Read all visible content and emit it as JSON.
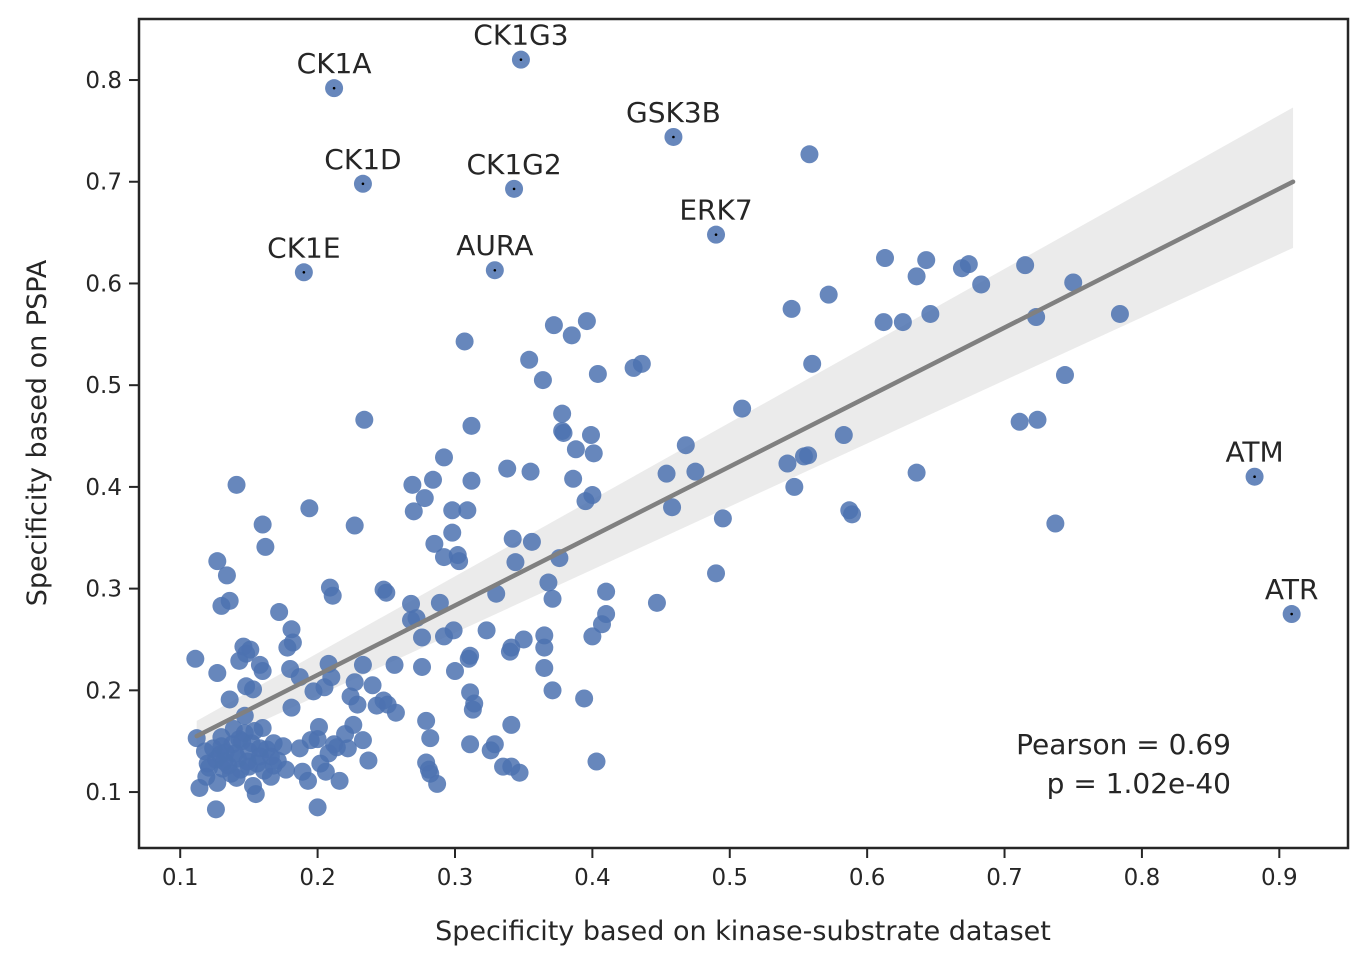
{
  "chart_data": {
    "type": "scatter",
    "xlabel": "Specificity based on kinase-substrate dataset",
    "ylabel": "Specificity based on PSPA",
    "xlim": [
      0.07,
      0.95
    ],
    "ylim": [
      0.045,
      0.86
    ],
    "x_ticks": [
      0.1,
      0.2,
      0.3,
      0.4,
      0.5,
      0.6,
      0.7,
      0.8,
      0.9
    ],
    "y_ticks": [
      0.1,
      0.2,
      0.3,
      0.4,
      0.5,
      0.6,
      0.7,
      0.8
    ],
    "x_tick_labels": [
      "0.1",
      "0.2",
      "0.3",
      "0.4",
      "0.5",
      "0.6",
      "0.7",
      "0.8",
      "0.9"
    ],
    "y_tick_labels": [
      "0.1",
      "0.2",
      "0.3",
      "0.4",
      "0.5",
      "0.6",
      "0.7",
      "0.8"
    ],
    "grid": false,
    "marker_color": "#4c72b0",
    "regression": {
      "color": "#808080",
      "band_color": "#ebebeb",
      "x": [
        0.112,
        0.91
      ],
      "y": [
        0.155,
        0.7
      ],
      "band_lower": [
        0.14,
        0.635
      ],
      "band_upper": [
        0.17,
        0.773
      ]
    },
    "stats_text": [
      "Pearson = 0.69",
      "p = 1.02e-40"
    ],
    "labeled_points": [
      {
        "label": "CK1G3",
        "x": 0.348,
        "y": 0.82
      },
      {
        "label": "CK1A",
        "x": 0.212,
        "y": 0.792
      },
      {
        "label": "GSK3B",
        "x": 0.459,
        "y": 0.744
      },
      {
        "label": "CK1D",
        "x": 0.233,
        "y": 0.698
      },
      {
        "label": "CK1G2",
        "x": 0.343,
        "y": 0.693
      },
      {
        "label": "ERK7",
        "x": 0.49,
        "y": 0.648
      },
      {
        "label": "CK1E",
        "x": 0.19,
        "y": 0.611
      },
      {
        "label": "AURA",
        "x": 0.329,
        "y": 0.613
      },
      {
        "label": "ATM",
        "x": 0.882,
        "y": 0.41
      },
      {
        "label": "ATR",
        "x": 0.909,
        "y": 0.275
      }
    ],
    "points": [
      [
        0.558,
        0.727
      ],
      [
        0.613,
        0.625
      ],
      [
        0.643,
        0.623
      ],
      [
        0.674,
        0.619
      ],
      [
        0.715,
        0.618
      ],
      [
        0.669,
        0.615
      ],
      [
        0.636,
        0.607
      ],
      [
        0.75,
        0.601
      ],
      [
        0.683,
        0.599
      ],
      [
        0.572,
        0.589
      ],
      [
        0.545,
        0.575
      ],
      [
        0.646,
        0.57
      ],
      [
        0.784,
        0.57
      ],
      [
        0.723,
        0.567
      ],
      [
        0.612,
        0.562
      ],
      [
        0.626,
        0.562
      ],
      [
        0.396,
        0.563
      ],
      [
        0.372,
        0.559
      ],
      [
        0.385,
        0.549
      ],
      [
        0.307,
        0.543
      ],
      [
        0.354,
        0.525
      ],
      [
        0.436,
        0.521
      ],
      [
        0.56,
        0.521
      ],
      [
        0.43,
        0.517
      ],
      [
        0.404,
        0.511
      ],
      [
        0.744,
        0.51
      ],
      [
        0.364,
        0.505
      ],
      [
        0.509,
        0.477
      ],
      [
        0.378,
        0.472
      ],
      [
        0.234,
        0.466
      ],
      [
        0.711,
        0.464
      ],
      [
        0.724,
        0.466
      ],
      [
        0.312,
        0.46
      ],
      [
        0.378,
        0.455
      ],
      [
        0.379,
        0.453
      ],
      [
        0.399,
        0.451
      ],
      [
        0.583,
        0.451
      ],
      [
        0.388,
        0.437
      ],
      [
        0.401,
        0.433
      ],
      [
        0.554,
        0.43
      ],
      [
        0.557,
        0.431
      ],
      [
        0.468,
        0.441
      ],
      [
        0.292,
        0.429
      ],
      [
        0.542,
        0.423
      ],
      [
        0.338,
        0.418
      ],
      [
        0.355,
        0.415
      ],
      [
        0.475,
        0.415
      ],
      [
        0.454,
        0.413
      ],
      [
        0.636,
        0.414
      ],
      [
        0.386,
        0.408
      ],
      [
        0.284,
        0.407
      ],
      [
        0.312,
        0.406
      ],
      [
        0.141,
        0.402
      ],
      [
        0.269,
        0.402
      ],
      [
        0.547,
        0.4
      ],
      [
        0.4,
        0.392
      ],
      [
        0.395,
        0.386
      ],
      [
        0.278,
        0.389
      ],
      [
        0.458,
        0.38
      ],
      [
        0.587,
        0.377
      ],
      [
        0.589,
        0.373
      ],
      [
        0.194,
        0.379
      ],
      [
        0.298,
        0.377
      ],
      [
        0.309,
        0.377
      ],
      [
        0.27,
        0.376
      ],
      [
        0.495,
        0.369
      ],
      [
        0.737,
        0.364
      ],
      [
        0.16,
        0.363
      ],
      [
        0.227,
        0.362
      ],
      [
        0.298,
        0.355
      ],
      [
        0.342,
        0.349
      ],
      [
        0.356,
        0.346
      ],
      [
        0.285,
        0.344
      ],
      [
        0.162,
        0.341
      ],
      [
        0.302,
        0.333
      ],
      [
        0.376,
        0.33
      ],
      [
        0.292,
        0.331
      ],
      [
        0.303,
        0.327
      ],
      [
        0.344,
        0.326
      ],
      [
        0.127,
        0.327
      ],
      [
        0.134,
        0.313
      ],
      [
        0.49,
        0.315
      ],
      [
        0.368,
        0.306
      ],
      [
        0.209,
        0.301
      ],
      [
        0.248,
        0.299
      ],
      [
        0.211,
        0.293
      ],
      [
        0.25,
        0.296
      ],
      [
        0.41,
        0.297
      ],
      [
        0.33,
        0.295
      ],
      [
        0.371,
        0.29
      ],
      [
        0.136,
        0.288
      ],
      [
        0.268,
        0.285
      ],
      [
        0.289,
        0.286
      ],
      [
        0.447,
        0.286
      ],
      [
        0.13,
        0.283
      ],
      [
        0.172,
        0.277
      ],
      [
        0.41,
        0.275
      ],
      [
        0.268,
        0.269
      ],
      [
        0.272,
        0.271
      ],
      [
        0.407,
        0.265
      ],
      [
        0.181,
        0.26
      ],
      [
        0.299,
        0.259
      ],
      [
        0.323,
        0.259
      ],
      [
        0.365,
        0.254
      ],
      [
        0.4,
        0.253
      ],
      [
        0.276,
        0.252
      ],
      [
        0.292,
        0.253
      ],
      [
        0.35,
        0.25
      ],
      [
        0.182,
        0.247
      ],
      [
        0.146,
        0.243
      ],
      [
        0.178,
        0.242
      ],
      [
        0.151,
        0.24
      ],
      [
        0.341,
        0.242
      ],
      [
        0.365,
        0.242
      ],
      [
        0.34,
        0.238
      ],
      [
        0.148,
        0.236
      ],
      [
        0.311,
        0.234
      ],
      [
        0.31,
        0.231
      ],
      [
        0.111,
        0.231
      ],
      [
        0.143,
        0.229
      ],
      [
        0.158,
        0.225
      ],
      [
        0.208,
        0.226
      ],
      [
        0.233,
        0.225
      ],
      [
        0.256,
        0.225
      ],
      [
        0.276,
        0.223
      ],
      [
        0.3,
        0.219
      ],
      [
        0.365,
        0.222
      ],
      [
        0.18,
        0.221
      ],
      [
        0.127,
        0.217
      ],
      [
        0.16,
        0.219
      ],
      [
        0.187,
        0.213
      ],
      [
        0.21,
        0.213
      ],
      [
        0.227,
        0.208
      ],
      [
        0.205,
        0.203
      ],
      [
        0.148,
        0.204
      ],
      [
        0.153,
        0.201
      ],
      [
        0.24,
        0.205
      ],
      [
        0.197,
        0.199
      ],
      [
        0.311,
        0.198
      ],
      [
        0.371,
        0.2
      ],
      [
        0.224,
        0.194
      ],
      [
        0.136,
        0.191
      ],
      [
        0.248,
        0.19
      ],
      [
        0.251,
        0.186
      ],
      [
        0.314,
        0.187
      ],
      [
        0.394,
        0.192
      ],
      [
        0.229,
        0.186
      ],
      [
        0.243,
        0.185
      ],
      [
        0.181,
        0.183
      ],
      [
        0.313,
        0.181
      ],
      [
        0.257,
        0.178
      ],
      [
        0.147,
        0.175
      ],
      [
        0.16,
        0.163
      ],
      [
        0.279,
        0.17
      ],
      [
        0.341,
        0.166
      ],
      [
        0.226,
        0.166
      ],
      [
        0.201,
        0.164
      ],
      [
        0.22,
        0.157
      ],
      [
        0.195,
        0.151
      ],
      [
        0.13,
        0.154
      ],
      [
        0.143,
        0.152
      ],
      [
        0.112,
        0.153
      ],
      [
        0.233,
        0.151
      ],
      [
        0.282,
        0.153
      ],
      [
        0.212,
        0.147
      ],
      [
        0.311,
        0.147
      ],
      [
        0.329,
        0.147
      ],
      [
        0.326,
        0.141
      ],
      [
        0.118,
        0.14
      ],
      [
        0.14,
        0.138
      ],
      [
        0.15,
        0.14
      ],
      [
        0.163,
        0.142
      ],
      [
        0.175,
        0.145
      ],
      [
        0.187,
        0.143
      ],
      [
        0.166,
        0.135
      ],
      [
        0.126,
        0.132
      ],
      [
        0.237,
        0.131
      ],
      [
        0.202,
        0.128
      ],
      [
        0.279,
        0.129
      ],
      [
        0.403,
        0.13
      ],
      [
        0.12,
        0.128
      ],
      [
        0.168,
        0.126
      ],
      [
        0.15,
        0.125
      ],
      [
        0.131,
        0.123
      ],
      [
        0.177,
        0.122
      ],
      [
        0.335,
        0.125
      ],
      [
        0.341,
        0.125
      ],
      [
        0.189,
        0.12
      ],
      [
        0.206,
        0.12
      ],
      [
        0.282,
        0.118
      ],
      [
        0.281,
        0.122
      ],
      [
        0.347,
        0.119
      ],
      [
        0.119,
        0.115
      ],
      [
        0.141,
        0.114
      ],
      [
        0.166,
        0.115
      ],
      [
        0.127,
        0.109
      ],
      [
        0.193,
        0.111
      ],
      [
        0.216,
        0.111
      ],
      [
        0.287,
        0.108
      ],
      [
        0.153,
        0.106
      ],
      [
        0.114,
        0.104
      ],
      [
        0.155,
        0.098
      ],
      [
        0.2,
        0.085
      ],
      [
        0.126,
        0.083
      ],
      [
        0.13,
        0.145
      ],
      [
        0.138,
        0.147
      ],
      [
        0.145,
        0.15
      ],
      [
        0.152,
        0.148
      ],
      [
        0.158,
        0.143
      ],
      [
        0.133,
        0.139
      ],
      [
        0.142,
        0.133
      ],
      [
        0.149,
        0.13
      ],
      [
        0.156,
        0.128
      ],
      [
        0.135,
        0.126
      ],
      [
        0.144,
        0.122
      ],
      [
        0.137,
        0.118
      ],
      [
        0.161,
        0.121
      ],
      [
        0.171,
        0.131
      ],
      [
        0.129,
        0.137
      ],
      [
        0.121,
        0.124
      ],
      [
        0.147,
        0.158
      ],
      [
        0.139,
        0.162
      ],
      [
        0.154,
        0.16
      ],
      [
        0.124,
        0.143
      ],
      [
        0.132,
        0.13
      ],
      [
        0.158,
        0.135
      ],
      [
        0.168,
        0.148
      ],
      [
        0.214,
        0.144
      ],
      [
        0.208,
        0.138
      ],
      [
        0.2,
        0.152
      ],
      [
        0.222,
        0.143
      ]
    ]
  }
}
